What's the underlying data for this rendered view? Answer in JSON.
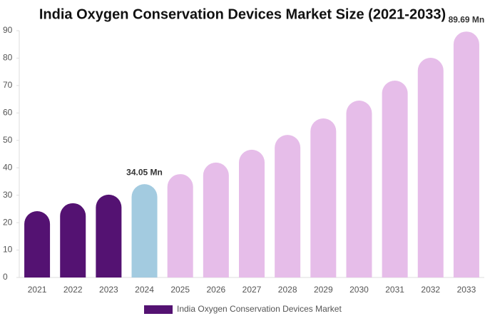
{
  "chart_data": {
    "type": "bar",
    "title": "India Oxygen Conservation Devices Market Size (2021-2033)",
    "categories": [
      "2021",
      "2022",
      "2023",
      "2024",
      "2025",
      "2026",
      "2027",
      "2028",
      "2029",
      "2030",
      "2031",
      "2032",
      "2033"
    ],
    "series": [
      {
        "name": "India Oxygen Conservation Devices Market",
        "color": "#541272",
        "values": [
          24.2,
          27.1,
          30.2,
          34.05,
          37.7,
          41.9,
          46.6,
          52.0,
          58.0,
          64.5,
          71.8,
          80.1,
          89.69
        ],
        "value_labels": [
          null,
          null,
          null,
          "34.05 Mn",
          null,
          null,
          null,
          null,
          null,
          null,
          null,
          null,
          "89.69 Mn"
        ],
        "colors": [
          "#541272",
          "#541272",
          "#541272",
          "#a3cbe0",
          "#e6bde9",
          "#e6bde9",
          "#e6bde9",
          "#e6bde9",
          "#e6bde9",
          "#e6bde9",
          "#e6bde9",
          "#e6bde9",
          "#e6bde9"
        ]
      }
    ],
    "ylim": [
      0,
      90
    ],
    "yticks": [
      0,
      10,
      20,
      30,
      40,
      50,
      60,
      70,
      80,
      90
    ],
    "grid": false,
    "legend": "bottom"
  }
}
